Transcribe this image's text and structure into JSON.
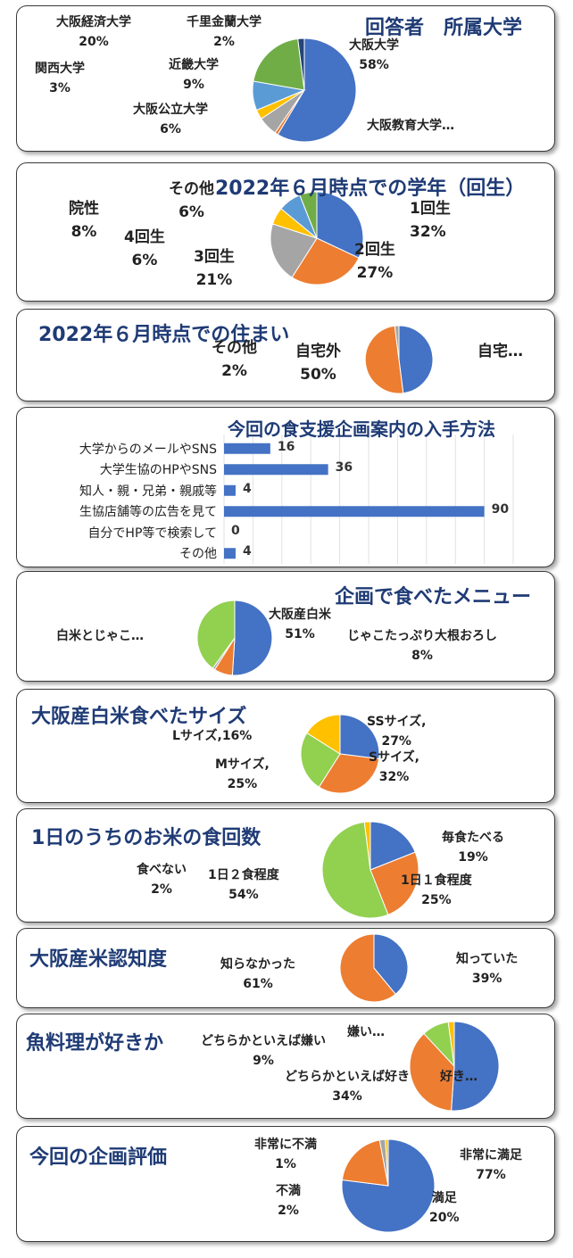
{
  "colors": {
    "blue": "#4472c4",
    "orange": "#ed7d31",
    "gray": "#a5a5a5",
    "yellow": "#ffc000",
    "lightblue": "#5b9bd5",
    "green": "#70ad47",
    "navy": "#264478",
    "lime": "#92d050"
  },
  "charts": [
    {
      "id": "university",
      "type": "pie",
      "title": "回答者　所属大学",
      "slices": [
        {
          "name": "大阪大学",
          "value": 58,
          "pct": "58%",
          "color": "#4472c4"
        },
        {
          "name": "大阪教育大学…",
          "value": 1,
          "pct": "",
          "color": "#ed7d31"
        },
        {
          "name": "大阪公立大学",
          "value": 6,
          "pct": "6%",
          "color": "#a5a5a5"
        },
        {
          "name": "関西大学",
          "value": 3,
          "pct": "3%",
          "color": "#ffc000"
        },
        {
          "name": "近畿大学",
          "value": 9,
          "pct": "9%",
          "color": "#5b9bd5"
        },
        {
          "name": "大阪経済大学",
          "value": 20,
          "pct": "20%",
          "color": "#70ad47"
        },
        {
          "name": "千里金蘭大学",
          "value": 2,
          "pct": "2%",
          "color": "#264478"
        }
      ]
    },
    {
      "id": "grade",
      "type": "pie",
      "title": "2022年６月時点での学年（回生）",
      "slices": [
        {
          "name": "1回生",
          "value": 32,
          "pct": "32%",
          "color": "#4472c4"
        },
        {
          "name": "2回生",
          "value": 27,
          "pct": "27%",
          "color": "#ed7d31"
        },
        {
          "name": "3回生",
          "value": 21,
          "pct": "21%",
          "color": "#a5a5a5"
        },
        {
          "name": "4回生",
          "value": 6,
          "pct": "6%",
          "color": "#ffc000"
        },
        {
          "name": "院性",
          "value": 8,
          "pct": "8%",
          "color": "#5b9bd5"
        },
        {
          "name": "その他",
          "value": 6,
          "pct": "6%",
          "color": "#70ad47"
        }
      ]
    },
    {
      "id": "residence",
      "type": "pie",
      "title": "2022年６月時点での住まい",
      "slices": [
        {
          "name": "自宅…",
          "value": 48,
          "pct": "",
          "color": "#4472c4"
        },
        {
          "name": "自宅外",
          "value": 50,
          "pct": "50%",
          "color": "#ed7d31"
        },
        {
          "name": "その他",
          "value": 2,
          "pct": "2%",
          "color": "#a5a5a5"
        }
      ]
    },
    {
      "id": "source",
      "type": "bar",
      "title": "今回の食支援企画案内の入手方法",
      "categories": [
        "大学からのメールやSNS",
        "大学生協のHPやSNS",
        "知人・親・兄弟・親戚等",
        "生協店舗等の広告を見て",
        "自分でHP等で検索して",
        "その他"
      ],
      "values": [
        16,
        36,
        4,
        90,
        0,
        4
      ],
      "labels": [
        "16",
        "36",
        "4",
        "90",
        "0",
        "4"
      ],
      "xlim": [
        0,
        100
      ]
    },
    {
      "id": "menu",
      "type": "pie",
      "title": "企画で食べたメニュー",
      "slices": [
        {
          "name": "大阪産白米",
          "value": 51,
          "pct": "51%",
          "color": "#4472c4"
        },
        {
          "name": "じゃこたっぷり大根おろし",
          "value": 8,
          "pct": "8%",
          "color": "#ed7d31"
        },
        {
          "name": "",
          "value": 1,
          "pct": "",
          "color": "#a5a5a5"
        },
        {
          "name": "白米とじゃこ…",
          "value": 40,
          "pct": "",
          "color": "#92d050"
        }
      ]
    },
    {
      "id": "ricesize",
      "type": "pie",
      "title": "大阪産白米食べたサイズ",
      "slices": [
        {
          "name": "SSサイズ,",
          "value": 27,
          "pct": "27%",
          "color": "#4472c4"
        },
        {
          "name": "Sサイズ,",
          "value": 32,
          "pct": "32%",
          "color": "#ed7d31"
        },
        {
          "name": "Mサイズ,",
          "value": 25,
          "pct": "25%",
          "color": "#92d050"
        },
        {
          "name": "Lサイズ,16%",
          "value": 16,
          "pct": "",
          "color": "#ffc000"
        }
      ]
    },
    {
      "id": "ricefreq",
      "type": "pie",
      "title": "1日のうちのお米の食回数",
      "slices": [
        {
          "name": "毎食たべる",
          "value": 19,
          "pct": "19%",
          "color": "#4472c4"
        },
        {
          "name": "1日１食程度",
          "value": 25,
          "pct": "25%",
          "color": "#ed7d31"
        },
        {
          "name": "1日２食程度",
          "value": 54,
          "pct": "54%",
          "color": "#92d050"
        },
        {
          "name": "食べない",
          "value": 2,
          "pct": "2%",
          "color": "#ffc000"
        }
      ]
    },
    {
      "id": "awareness",
      "type": "pie",
      "title": "大阪産米認知度",
      "slices": [
        {
          "name": "知っていた",
          "value": 39,
          "pct": "39%",
          "color": "#4472c4"
        },
        {
          "name": "知らなかった",
          "value": 61,
          "pct": "61%",
          "color": "#ed7d31"
        }
      ]
    },
    {
      "id": "fish",
      "type": "pie",
      "title": "魚料理が好きか",
      "slices": [
        {
          "name": "好き…",
          "value": 47,
          "pct": "",
          "color": "#4472c4"
        },
        {
          "name": "どちらかといえば好き",
          "value": 34,
          "pct": "34%",
          "color": "#ed7d31"
        },
        {
          "name": "どちらかといえば嫌い",
          "value": 9,
          "pct": "9%",
          "color": "#92d050"
        },
        {
          "name": "嫌い…",
          "value": 2,
          "pct": "",
          "color": "#ffc000"
        }
      ]
    },
    {
      "id": "evaluation",
      "type": "pie",
      "title": "今回の企画評価",
      "slices": [
        {
          "name": "非常に満足",
          "value": 77,
          "pct": "77%",
          "color": "#4472c4"
        },
        {
          "name": "満足",
          "value": 20,
          "pct": "20%",
          "color": "#ed7d31"
        },
        {
          "name": "不満",
          "value": 2,
          "pct": "2%",
          "color": "#a5a5a5"
        },
        {
          "name": "非常に不満",
          "value": 1,
          "pct": "1%",
          "color": "#ffc000"
        }
      ]
    }
  ]
}
